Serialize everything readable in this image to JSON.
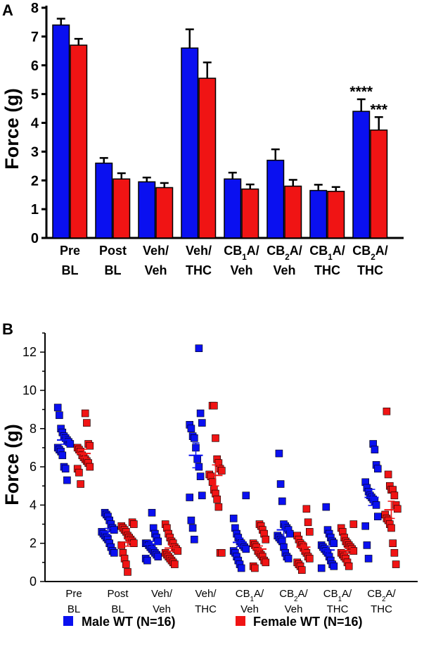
{
  "colors": {
    "male": "#0a10f0",
    "female": "#f01414",
    "axis": "#000000"
  },
  "chart_data": [
    {
      "panel": "A",
      "type": "bar",
      "ylabel": "Force (g)",
      "ylim": [
        0,
        8
      ],
      "yticks": [
        "0",
        "1",
        "2",
        "3",
        "4",
        "5",
        "6",
        "7",
        "8"
      ],
      "categories": [
        {
          "line1": "Pre",
          "line2": "BL"
        },
        {
          "line1": "Post",
          "line2": "BL"
        },
        {
          "line1": "Veh/",
          "line2": "Veh"
        },
        {
          "line1": "Veh/",
          "line2": "THC"
        },
        {
          "line1": "CB",
          "sub": "1",
          "tail": "A/",
          "line2": "Veh"
        },
        {
          "line1": "CB",
          "sub": "2",
          "tail": "A/",
          "line2": "Veh"
        },
        {
          "line1": "CB",
          "sub": "1",
          "tail": "A/",
          "line2": "THC"
        },
        {
          "line1": "CB",
          "sub": "2",
          "tail": "A/",
          "line2": "THC"
        }
      ],
      "series": [
        {
          "name": "Male WT (N=16)",
          "values": [
            7.4,
            2.6,
            1.95,
            6.6,
            2.05,
            2.7,
            1.65,
            4.4
          ],
          "errors": [
            0.22,
            0.18,
            0.15,
            0.65,
            0.22,
            0.38,
            0.2,
            0.42
          ]
        },
        {
          "name": "Female WT (N=16)",
          "values": [
            6.7,
            2.05,
            1.75,
            5.55,
            1.7,
            1.8,
            1.62,
            3.75
          ],
          "errors": [
            0.22,
            0.2,
            0.16,
            0.55,
            0.16,
            0.22,
            0.15,
            0.45
          ]
        }
      ],
      "annotations": [
        {
          "category": 7,
          "series": 0,
          "text": "****"
        },
        {
          "category": 7,
          "series": 1,
          "text": "***"
        }
      ]
    },
    {
      "panel": "B",
      "type": "scatter",
      "ylabel": "Force (g)",
      "ylim": [
        0,
        13
      ],
      "yticks": [
        "0",
        "2",
        "4",
        "6",
        "8",
        "10",
        "12"
      ],
      "categories": [
        {
          "line1": "Pre",
          "line2": "BL"
        },
        {
          "line1": "Post",
          "line2": "BL"
        },
        {
          "line1": "Veh/",
          "line2": "Veh"
        },
        {
          "line1": "Veh/",
          "line2": "THC"
        },
        {
          "line1": "CB",
          "sub": "1",
          "tail": "A/",
          "line2": "Veh"
        },
        {
          "line1": "CB",
          "sub": "2",
          "tail": "A/",
          "line2": "Veh"
        },
        {
          "line1": "CB",
          "sub": "1",
          "tail": "A/",
          "line2": "THC"
        },
        {
          "line1": "CB",
          "sub": "2",
          "tail": "A/",
          "line2": "THC"
        }
      ],
      "series": [
        {
          "name": "Male WT (N=16)",
          "mean": [
            7.4,
            2.6,
            1.95,
            6.6,
            2.05,
            2.7,
            1.65,
            4.4
          ],
          "sem": [
            0.22,
            0.18,
            0.15,
            0.65,
            0.22,
            0.38,
            0.2,
            0.42
          ],
          "points": [
            [
              9.1,
              8.7,
              8.0,
              7.8,
              7.6,
              7.5,
              7.4,
              7.3,
              7.2,
              7.0,
              6.9,
              6.8,
              6.6,
              6.0,
              5.9,
              5.3
            ],
            [
              3.6,
              3.5,
              3.4,
              3.2,
              3.0,
              2.8,
              2.7,
              2.6,
              2.5,
              2.4,
              2.3,
              2.2,
              2.0,
              1.8,
              1.6,
              1.5
            ],
            [
              3.6,
              2.8,
              2.5,
              2.3,
              2.1,
              2.0,
              2.0,
              1.9,
              1.8,
              1.7,
              1.6,
              1.5,
              1.4,
              1.3,
              1.2,
              1.1
            ],
            [
              12.2,
              8.8,
              8.3,
              8.2,
              8.0,
              7.6,
              7.5,
              7.0,
              6.4,
              6.0,
              5.5,
              4.5,
              4.4,
              3.2,
              2.8,
              2.2
            ],
            [
              4.5,
              3.3,
              2.8,
              2.5,
              2.3,
              2.1,
              2.0,
              1.9,
              1.8,
              1.7,
              1.6,
              1.5,
              1.3,
              1.1,
              0.9,
              0.7
            ],
            [
              6.7,
              5.1,
              4.2,
              3.0,
              2.9,
              2.8,
              2.7,
              2.5,
              2.4,
              2.3,
              2.2,
              2.1,
              1.8,
              1.5,
              1.3,
              1.2
            ],
            [
              3.9,
              2.7,
              2.5,
              2.3,
              2.1,
              2.0,
              1.9,
              1.8,
              1.7,
              1.6,
              1.5,
              1.3,
              1.1,
              0.9,
              0.8,
              0.7
            ],
            [
              7.2,
              6.9,
              6.1,
              5.9,
              5.2,
              4.9,
              4.7,
              4.5,
              4.4,
              4.3,
              4.2,
              4.0,
              3.4,
              2.9,
              1.9,
              1.2
            ]
          ]
        },
        {
          "name": "Female WT (N=16)",
          "mean": [
            6.7,
            2.05,
            1.75,
            5.55,
            1.7,
            1.8,
            1.62,
            3.75
          ],
          "sem": [
            0.22,
            0.2,
            0.16,
            0.55,
            0.16,
            0.22,
            0.15,
            0.45
          ],
          "points": [
            [
              8.8,
              8.3,
              7.2,
              7.1,
              7.0,
              6.9,
              6.8,
              6.6,
              6.5,
              6.4,
              6.3,
              6.2,
              6.0,
              5.9,
              5.7,
              5.1
            ],
            [
              3.1,
              3.0,
              2.9,
              2.8,
              2.7,
              2.6,
              2.4,
              2.3,
              2.2,
              2.1,
              2.0,
              1.9,
              1.5,
              1.2,
              0.9,
              0.5
            ],
            [
              3.0,
              2.8,
              2.5,
              2.3,
              2.1,
              2.0,
              1.8,
              1.7,
              1.6,
              1.5,
              1.4,
              1.3,
              1.2,
              1.1,
              1.0,
              0.9
            ],
            [
              9.2,
              9.2,
              7.5,
              6.4,
              6.2,
              5.9,
              5.8,
              5.6,
              5.5,
              5.2,
              4.8,
              4.6,
              4.3,
              3.9,
              1.5,
              1.5
            ],
            [
              3.0,
              2.9,
              2.7,
              2.5,
              2.2,
              2.0,
              1.9,
              1.8,
              1.6,
              1.5,
              1.4,
              1.3,
              1.1,
              1.0,
              0.8,
              0.7
            ],
            [
              3.8,
              3.1,
              2.6,
              2.4,
              2.2,
              2.0,
              1.9,
              1.8,
              1.6,
              1.5,
              1.3,
              1.2,
              1.0,
              0.9,
              0.8,
              0.6
            ],
            [
              3.0,
              2.8,
              2.6,
              2.3,
              2.1,
              2.0,
              1.9,
              1.8,
              1.7,
              1.6,
              1.5,
              1.4,
              1.3,
              1.2,
              1.0,
              0.8
            ],
            [
              8.9,
              5.6,
              5.0,
              4.8,
              4.8,
              4.5,
              4.0,
              3.8,
              3.5,
              3.3,
              3.2,
              3.0,
              2.8,
              2.0,
              1.5,
              0.9
            ]
          ]
        }
      ]
    }
  ],
  "legend": [
    {
      "label": "Male WT (N=16)",
      "color": "#0a10f0"
    },
    {
      "label": "Female WT (N=16)",
      "color": "#f01414"
    }
  ]
}
